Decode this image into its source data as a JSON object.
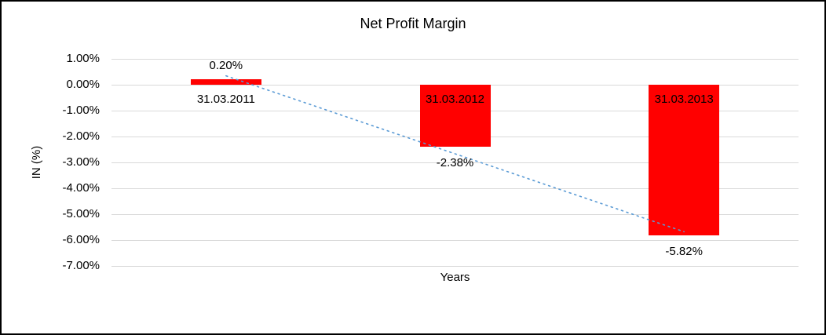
{
  "chart_data": {
    "type": "bar",
    "title": "Net Profit Margin",
    "xlabel": "Years",
    "ylabel": "IN (%)",
    "categories": [
      "31.03.2011",
      "31.03.2012",
      "31.03.2013"
    ],
    "values": [
      0.2,
      -2.38,
      -5.82
    ],
    "data_labels": [
      "0.20%",
      "-2.38%",
      "-5.82%"
    ],
    "y_ticks": [
      "1.00%",
      "0.00%",
      "-1.00%",
      "-2.00%",
      "-3.00%",
      "-4.00%",
      "-5.00%",
      "-6.00%",
      "-7.00%"
    ],
    "ylim": [
      -7.0,
      1.0
    ],
    "grid": true,
    "legend": "none",
    "bar_color": "#FF0000",
    "grid_color": "#D9D9D9",
    "trendline": {
      "type": "linear",
      "style": "dotted",
      "color": "#5B9BD5"
    }
  }
}
